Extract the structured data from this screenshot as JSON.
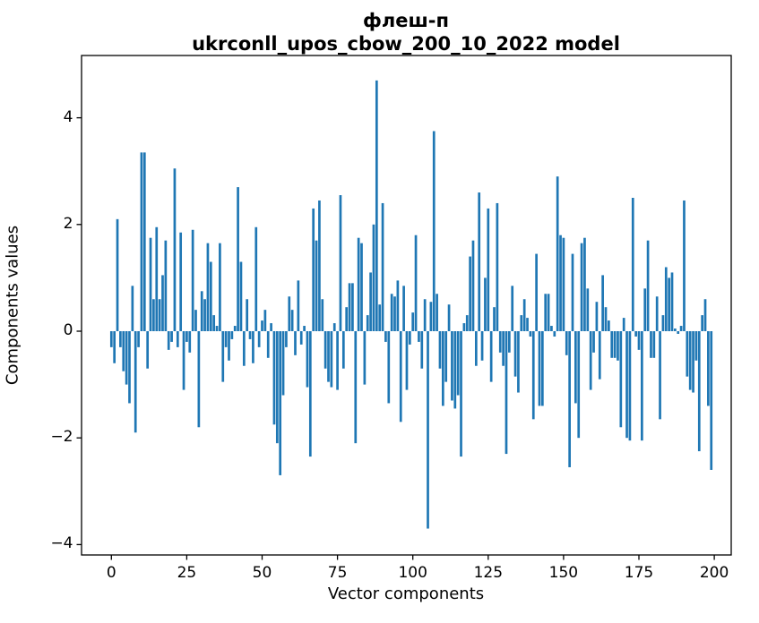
{
  "title_line1": "флеш-п",
  "title_line2": "ukrconll_upos_cbow_200_10_2022 model",
  "chart_data": {
    "type": "bar",
    "title": "флеш-п\nukrconll_upos_cbow_200_10_2022 model",
    "xlabel": "Vector components",
    "ylabel": "Components values",
    "x_ticks": [
      0,
      25,
      50,
      75,
      100,
      125,
      150,
      175,
      200
    ],
    "y_ticks": [
      -4,
      -2,
      0,
      2,
      4
    ],
    "xlim": [
      -10.9,
      210.9
    ],
    "ylim": [
      -4.2,
      5.17
    ],
    "grid": false,
    "legend": null,
    "bar_color": "#1f77b4",
    "axis_color": "#000000",
    "x_start": 0,
    "values": [
      -0.3,
      -0.6,
      2.1,
      -0.3,
      -0.75,
      -1.0,
      -1.35,
      0.85,
      -1.9,
      -0.3,
      3.35,
      3.35,
      -0.7,
      1.75,
      0.6,
      1.95,
      0.6,
      1.05,
      1.7,
      -0.35,
      -0.2,
      3.05,
      -0.3,
      1.85,
      -1.1,
      -0.2,
      -0.4,
      1.9,
      0.4,
      -1.8,
      0.75,
      0.6,
      1.65,
      1.3,
      0.3,
      0.1,
      1.65,
      -0.95,
      -0.3,
      -0.55,
      -0.15,
      0.1,
      2.7,
      1.3,
      -0.65,
      0.6,
      -0.15,
      -0.6,
      1.95,
      -0.3,
      0.2,
      0.4,
      -0.5,
      0.15,
      -1.75,
      -2.1,
      -2.7,
      -1.2,
      -0.3,
      0.65,
      0.4,
      -0.45,
      0.95,
      -0.25,
      0.1,
      -1.05,
      -2.35,
      2.3,
      1.7,
      2.45,
      0.6,
      -0.7,
      -0.95,
      -1.05,
      0.15,
      -1.1,
      2.55,
      -0.7,
      0.45,
      0.9,
      0.9,
      -2.1,
      1.75,
      1.65,
      -1.0,
      0.3,
      1.1,
      2.0,
      4.7,
      0.5,
      2.4,
      -0.2,
      -1.35,
      0.7,
      0.65,
      0.95,
      -1.7,
      0.85,
      -1.1,
      -0.25,
      0.35,
      1.8,
      -0.2,
      -0.7,
      0.6,
      -3.7,
      0.55,
      3.75,
      0.7,
      -0.7,
      -1.4,
      -0.95,
      0.5,
      -1.3,
      -1.45,
      -1.2,
      -2.35,
      0.15,
      0.3,
      1.4,
      1.7,
      -0.65,
      2.6,
      -0.55,
      1.0,
      2.3,
      -0.95,
      0.45,
      2.4,
      -0.4,
      -0.65,
      -2.3,
      -0.4,
      0.85,
      -0.85,
      -1.15,
      0.3,
      0.6,
      0.25,
      -0.1,
      -1.65,
      1.45,
      -1.4,
      -1.4,
      0.7,
      0.7,
      0.1,
      -0.1,
      2.9,
      1.8,
      1.75,
      -0.45,
      -2.55,
      1.45,
      -1.35,
      -2.0,
      1.65,
      1.75,
      0.8,
      -1.1,
      -0.4,
      0.55,
      -0.9,
      1.05,
      0.45,
      0.2,
      -0.5,
      -0.5,
      -0.55,
      -1.8,
      0.25,
      -2.0,
      -2.05,
      2.5,
      -0.1,
      -0.35,
      -2.05,
      0.8,
      1.7,
      -0.5,
      -0.5,
      0.65,
      -1.65,
      0.3,
      1.2,
      1.0,
      1.1,
      0.05,
      -0.05,
      0.1,
      2.45,
      -0.85,
      -1.1,
      -1.15,
      -0.55,
      -2.25,
      0.3,
      0.6,
      -1.4,
      -2.6
    ]
  }
}
